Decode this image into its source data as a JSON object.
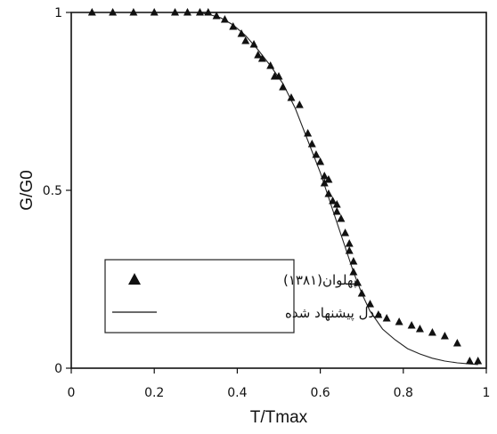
{
  "chart_data": {
    "type": "scatter",
    "xlabel": "T/Tmax",
    "ylabel": "G/G0",
    "xlim": [
      0,
      1
    ],
    "ylim": [
      0,
      1
    ],
    "x_ticks": [
      "0",
      "0.2",
      "0.4",
      "0.6",
      "0.8",
      "1"
    ],
    "y_ticks": [
      "0",
      "0.5",
      "1"
    ],
    "grid": false,
    "legend_position": "lower-left",
    "series": [
      {
        "name": "پهلوان(۱۳۸۱)",
        "marker": "triangle",
        "x": [
          0.05,
          0.1,
          0.15,
          0.2,
          0.25,
          0.28,
          0.31,
          0.33,
          0.35,
          0.37,
          0.39,
          0.41,
          0.42,
          0.44,
          0.45,
          0.46,
          0.48,
          0.49,
          0.5,
          0.51,
          0.53,
          0.55,
          0.57,
          0.58,
          0.59,
          0.6,
          0.61,
          0.61,
          0.62,
          0.62,
          0.63,
          0.64,
          0.64,
          0.65,
          0.66,
          0.67,
          0.67,
          0.68,
          0.68,
          0.69,
          0.7,
          0.72,
          0.74,
          0.76,
          0.79,
          0.82,
          0.84,
          0.87,
          0.9,
          0.93,
          0.96,
          0.98
        ],
        "y": [
          1.0,
          1.0,
          1.0,
          1.0,
          1.0,
          1.0,
          1.0,
          1.0,
          0.99,
          0.98,
          0.96,
          0.94,
          0.92,
          0.91,
          0.88,
          0.87,
          0.85,
          0.82,
          0.82,
          0.79,
          0.76,
          0.74,
          0.66,
          0.63,
          0.6,
          0.58,
          0.54,
          0.52,
          0.53,
          0.49,
          0.47,
          0.46,
          0.44,
          0.42,
          0.38,
          0.35,
          0.33,
          0.3,
          0.27,
          0.24,
          0.21,
          0.18,
          0.15,
          0.14,
          0.13,
          0.12,
          0.11,
          0.1,
          0.09,
          0.07,
          0.02,
          0.02
        ]
      },
      {
        "name": "مدل پیشنهاد شده",
        "marker": "line",
        "x": [
          0.0,
          0.05,
          0.1,
          0.15,
          0.2,
          0.25,
          0.3,
          0.33,
          0.36,
          0.39,
          0.42,
          0.45,
          0.48,
          0.51,
          0.54,
          0.57,
          0.6,
          0.62,
          0.64,
          0.66,
          0.68,
          0.7,
          0.72,
          0.75,
          0.78,
          0.81,
          0.84,
          0.87,
          0.9,
          0.93,
          0.96,
          0.98
        ],
        "y": [
          1.0,
          1.0,
          1.0,
          1.0,
          1.0,
          1.0,
          1.0,
          0.995,
          0.985,
          0.965,
          0.935,
          0.895,
          0.85,
          0.8,
          0.73,
          0.64,
          0.55,
          0.48,
          0.41,
          0.34,
          0.27,
          0.21,
          0.16,
          0.11,
          0.08,
          0.055,
          0.04,
          0.028,
          0.02,
          0.015,
          0.012,
          0.01
        ]
      }
    ]
  },
  "legend": {
    "entries": [
      "پهلوان(۱۳۸۱)",
      "مدل پیشنهاد شده"
    ]
  },
  "colors": {
    "ink": "#111111",
    "background": "#ffffff"
  }
}
